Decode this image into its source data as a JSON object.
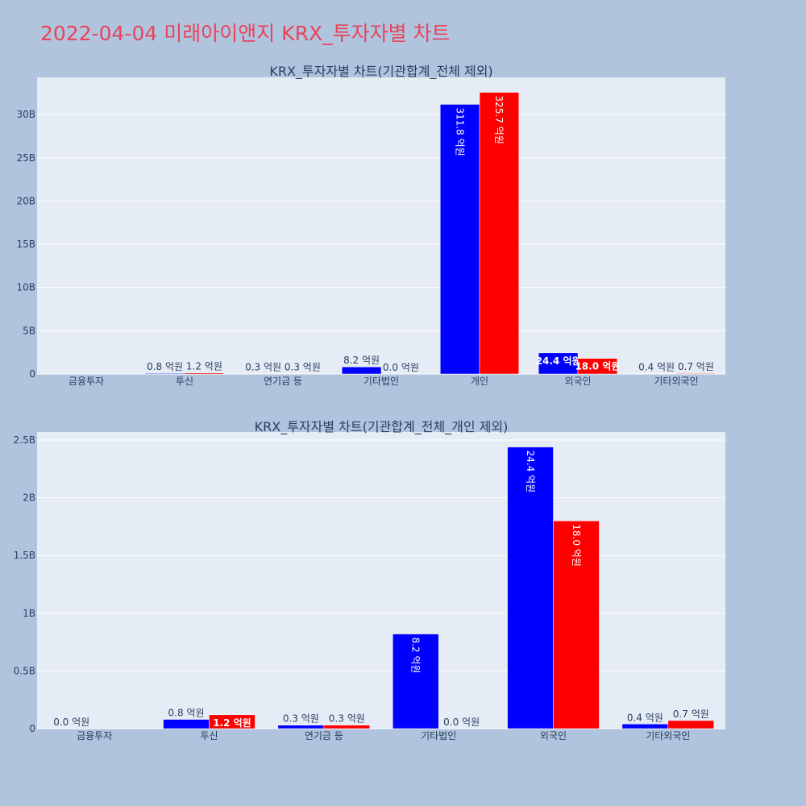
{
  "page_title": "2022-04-04 미래아이앤지 KRX_투자자별 차트",
  "colors": {
    "buy": "#0000ff",
    "sell": "#ff0000",
    "plot_bg": "#e5ecf6",
    "page_bg": "#b0c4de",
    "title": "#e8445a"
  },
  "chart_data": [
    {
      "type": "bar",
      "title": "KRX_투자자별 차트(기관합계_전체 제외)",
      "categories": [
        "금융투자",
        "투신",
        "연기금 등",
        "기타법인",
        "개인",
        "외국인",
        "기타외국인"
      ],
      "series": [
        {
          "color": "#0000ff",
          "values": [
            0,
            80000000,
            30000000,
            820000000,
            31180000000,
            2440000000,
            40000000
          ],
          "labels": [
            "",
            "0.8 억원",
            "0.3 억원",
            "8.2 억원",
            "311.8 억원",
            "24.4 억원",
            "0.4 억원"
          ]
        },
        {
          "color": "#ff0000",
          "values": [
            0,
            120000000,
            30000000,
            0,
            32570000000,
            1800000000,
            70000000
          ],
          "labels": [
            "",
            "1.2 억원",
            "0.3 억원",
            "0.0 억원",
            "325.7 억원",
            "18.0 억원",
            "0.7 억원"
          ]
        }
      ],
      "y_ticks": [
        0,
        5000000000,
        10000000000,
        15000000000,
        20000000000,
        25000000000,
        30000000000
      ],
      "y_tick_labels": [
        "0",
        "5B",
        "10B",
        "15B",
        "20B",
        "25B",
        "30B"
      ],
      "ylim": [
        0,
        34300000000
      ],
      "grid": true,
      "legend": "none"
    },
    {
      "type": "bar",
      "title": "KRX_투자자별 차트(기관합계_전체_개인 제외)",
      "categories": [
        "금융투자",
        "투신",
        "연기금 등",
        "기타법인",
        "외국인",
        "기타외국인"
      ],
      "series": [
        {
          "color": "#0000ff",
          "values": [
            0,
            80000000,
            30000000,
            820000000,
            2440000000,
            40000000
          ],
          "labels": [
            "0.0 억원",
            "0.8 억원",
            "0.3 억원",
            "8.2 억원",
            "24.4 억원",
            "0.4 억원"
          ]
        },
        {
          "color": "#ff0000",
          "values": [
            0,
            120000000,
            30000000,
            0,
            1800000000,
            70000000
          ],
          "labels": [
            "",
            "1.2 억원",
            "0.3 억원",
            "0.0 억원",
            "18.0 억원",
            "0.7 억원"
          ]
        }
      ],
      "y_ticks": [
        0,
        500000000,
        1000000000,
        1500000000,
        2000000000,
        2500000000
      ],
      "y_tick_labels": [
        "0",
        "0.5B",
        "1B",
        "1.5B",
        "2B",
        "2.5B"
      ],
      "ylim": [
        0,
        2570000000
      ],
      "grid": true,
      "legend": "none"
    }
  ]
}
